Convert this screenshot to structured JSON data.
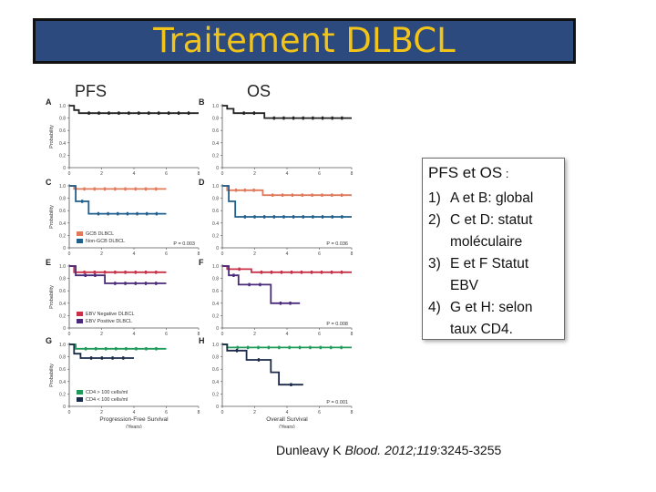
{
  "slide": {
    "title": "Traitement DLBCL",
    "label_pfs": "PFS",
    "label_os": "OS",
    "info": {
      "heading_main": "PFS et OS",
      "heading_suffix": " :",
      "items": [
        {
          "num": "1)",
          "text": "A et B: global"
        },
        {
          "num": "2)",
          "text": "C et D: statut moléculaire"
        },
        {
          "num": "3)",
          "text": "E et F Statut EBV"
        },
        {
          "num": "4)",
          "text": "G et H: selon taux CD4."
        }
      ]
    },
    "citation": {
      "author": "Dunleavy K",
      "journal": "Blood.",
      "ref": " 2012;119:",
      "pages": "3245-3255"
    }
  },
  "chart_data": {
    "type": "line",
    "ylabel": "Probability",
    "yticks": [
      "0",
      "0.2",
      "0.4",
      "0.6",
      "0.8",
      "1.0"
    ],
    "xticks": [
      "0",
      "2",
      "4",
      "6",
      "8"
    ],
    "xlabel_pfs": "Progression-Free Survival",
    "xlabel_os": "Overall Survival",
    "xunit": "(Years)",
    "panels": [
      {
        "letter": "A",
        "col": 0,
        "row": 0,
        "series": [
          {
            "color": "#222222",
            "points": [
              [
                0,
                1.0
              ],
              [
                0.3,
                1.0
              ],
              [
                0.3,
                0.93
              ],
              [
                0.6,
                0.93
              ],
              [
                0.6,
                0.88
              ],
              [
                8,
                0.88
              ]
            ]
          }
        ]
      },
      {
        "letter": "B",
        "col": 1,
        "row": 0,
        "series": [
          {
            "color": "#222222",
            "points": [
              [
                0,
                1.0
              ],
              [
                0.3,
                1.0
              ],
              [
                0.3,
                0.95
              ],
              [
                0.7,
                0.95
              ],
              [
                0.7,
                0.88
              ],
              [
                2.6,
                0.88
              ],
              [
                2.6,
                0.8
              ],
              [
                8,
                0.8
              ]
            ]
          }
        ]
      },
      {
        "letter": "C",
        "col": 0,
        "row": 1,
        "pvalue": "P = 0.003",
        "legend": [
          "GCB DLBCL",
          "Non-GCB DLBCL"
        ],
        "series": [
          {
            "name": "GCB DLBCL",
            "color": "#e07a5a",
            "points": [
              [
                0,
                1.0
              ],
              [
                0.3,
                1.0
              ],
              [
                0.3,
                0.95
              ],
              [
                6,
                0.95
              ]
            ]
          },
          {
            "name": "Non-GCB DLBCL",
            "color": "#1f5f8b",
            "points": [
              [
                0,
                1.0
              ],
              [
                0.4,
                1.0
              ],
              [
                0.4,
                0.75
              ],
              [
                1.2,
                0.75
              ],
              [
                1.2,
                0.55
              ],
              [
                6,
                0.55
              ]
            ]
          }
        ]
      },
      {
        "letter": "D",
        "col": 1,
        "row": 1,
        "pvalue": "P = 0.036",
        "series": [
          {
            "color": "#e07a5a",
            "points": [
              [
                0,
                1.0
              ],
              [
                0.3,
                1.0
              ],
              [
                0.3,
                0.93
              ],
              [
                2.5,
                0.93
              ],
              [
                2.5,
                0.85
              ],
              [
                8,
                0.85
              ]
            ]
          },
          {
            "color": "#1f5f8b",
            "points": [
              [
                0,
                1.0
              ],
              [
                0.4,
                1.0
              ],
              [
                0.4,
                0.75
              ],
              [
                0.8,
                0.75
              ],
              [
                0.8,
                0.5
              ],
              [
                8,
                0.5
              ]
            ]
          }
        ]
      },
      {
        "letter": "E",
        "col": 0,
        "row": 2,
        "legend": [
          "EBV Negative DLBCL",
          "EBV Positive DLBCL"
        ],
        "series": [
          {
            "name": "EBV Negative DLBCL",
            "color": "#c9304a",
            "points": [
              [
                0,
                1.0
              ],
              [
                0.3,
                1.0
              ],
              [
                0.3,
                0.9
              ],
              [
                6,
                0.9
              ]
            ]
          },
          {
            "name": "EBV Positive DLBCL",
            "color": "#4a2a7a",
            "points": [
              [
                0,
                1.0
              ],
              [
                0.4,
                1.0
              ],
              [
                0.4,
                0.85
              ],
              [
                2.2,
                0.85
              ],
              [
                2.2,
                0.72
              ],
              [
                6,
                0.72
              ]
            ]
          }
        ]
      },
      {
        "letter": "F",
        "col": 1,
        "row": 2,
        "pvalue": "P = 0.008",
        "series": [
          {
            "color": "#c9304a",
            "points": [
              [
                0,
                1.0
              ],
              [
                0.3,
                1.0
              ],
              [
                0.3,
                0.95
              ],
              [
                1.8,
                0.95
              ],
              [
                1.8,
                0.9
              ],
              [
                8,
                0.9
              ]
            ]
          },
          {
            "color": "#4a2a7a",
            "points": [
              [
                0,
                1.0
              ],
              [
                0.4,
                1.0
              ],
              [
                0.4,
                0.85
              ],
              [
                1.0,
                0.85
              ],
              [
                1.0,
                0.7
              ],
              [
                3.0,
                0.7
              ],
              [
                3.0,
                0.4
              ],
              [
                4.8,
                0.4
              ]
            ]
          }
        ]
      },
      {
        "letter": "G",
        "col": 0,
        "row": 3,
        "legend": [
          "CD4 > 100 cells/ml",
          "CD4 < 100 cells/ml"
        ],
        "series": [
          {
            "name": "CD4 > 100 cells/ml",
            "color": "#1f9a5a",
            "points": [
              [
                0,
                1.0
              ],
              [
                0.4,
                1.0
              ],
              [
                0.4,
                0.93
              ],
              [
                6,
                0.93
              ]
            ]
          },
          {
            "name": "CD4 < 100 cells/ml",
            "color": "#1b2a4a",
            "points": [
              [
                0,
                1.0
              ],
              [
                0.3,
                1.0
              ],
              [
                0.3,
                0.85
              ],
              [
                0.7,
                0.85
              ],
              [
                0.7,
                0.78
              ],
              [
                4,
                0.78
              ]
            ]
          }
        ]
      },
      {
        "letter": "H",
        "col": 1,
        "row": 3,
        "pvalue": "P = 0.001",
        "series": [
          {
            "color": "#1f9a5a",
            "points": [
              [
                0,
                1.0
              ],
              [
                0.3,
                1.0
              ],
              [
                0.3,
                0.95
              ],
              [
                8,
                0.95
              ]
            ]
          },
          {
            "color": "#1b2a4a",
            "points": [
              [
                0,
                1.0
              ],
              [
                0.3,
                1.0
              ],
              [
                0.3,
                0.9
              ],
              [
                1.5,
                0.9
              ],
              [
                1.5,
                0.75
              ],
              [
                3.0,
                0.75
              ],
              [
                3.0,
                0.55
              ],
              [
                3.5,
                0.55
              ],
              [
                3.5,
                0.35
              ],
              [
                5.0,
                0.35
              ]
            ]
          }
        ]
      }
    ]
  }
}
